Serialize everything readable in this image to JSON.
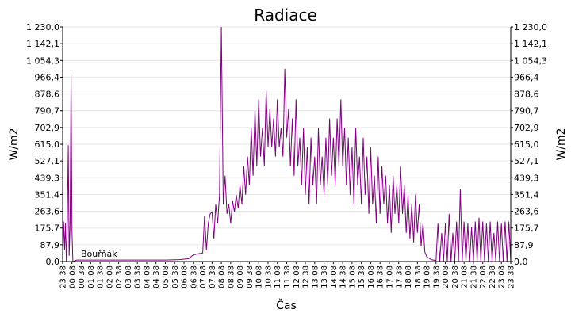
{
  "chart_data": {
    "type": "line",
    "title": "Radiace",
    "xlabel": "Čas",
    "ylabel": "W/m2",
    "ylabel_right": "W/m2",
    "ylim": [
      0,
      1230
    ],
    "yticks": [
      0,
      87.9,
      175.7,
      263.6,
      351.4,
      439.3,
      527.1,
      615.0,
      702.9,
      790.7,
      878.6,
      966.4,
      1054.3,
      1142.1,
      1230.0
    ],
    "ytick_labels": [
      "0,0",
      "87,9",
      "175,7",
      "263,6",
      "351,4",
      "439,3",
      "527,1",
      "615,0",
      "702,9",
      "790,7",
      "878,6",
      "966,4",
      "1 054,3",
      "1 142,1",
      "1 230,0"
    ],
    "xtick_labels": [
      "23:38",
      "00:08",
      "00:38",
      "01:08",
      "01:38",
      "02:08",
      "02:38",
      "03:08",
      "03:38",
      "04:08",
      "04:38",
      "05:08",
      "05:38",
      "06:08",
      "06:38",
      "07:08",
      "07:38",
      "08:08",
      "08:38",
      "09:08",
      "09:38",
      "10:08",
      "10:38",
      "11:08",
      "11:38",
      "12:08",
      "12:38",
      "13:08",
      "13:38",
      "14:08",
      "14:38",
      "15:08",
      "15:38",
      "16:08",
      "16:38",
      "17:08",
      "17:38",
      "18:08",
      "18:38",
      "19:08",
      "19:38",
      "20:08",
      "20:38",
      "21:08",
      "21:38",
      "22:08",
      "22:38",
      "23:08",
      "23:38"
    ],
    "grid": true,
    "series": [
      {
        "name": "Bouřňák",
        "color": "#800080",
        "points": [
          [
            0,
            0
          ],
          [
            0.1,
            210
          ],
          [
            0.2,
            60
          ],
          [
            0.3,
            200
          ],
          [
            0.4,
            0
          ],
          [
            0.5,
            210
          ],
          [
            0.6,
            610
          ],
          [
            0.7,
            30
          ],
          [
            0.8,
            200
          ],
          [
            0.9,
            980
          ],
          [
            1.0,
            150
          ],
          [
            1.1,
            0
          ],
          [
            1.5,
            8
          ],
          [
            3,
            8
          ],
          [
            5,
            8
          ],
          [
            7,
            8
          ],
          [
            9,
            8
          ],
          [
            11,
            8
          ],
          [
            12.5,
            10
          ],
          [
            13.5,
            15
          ],
          [
            14,
            35
          ],
          [
            14.5,
            40
          ],
          [
            15,
            45
          ],
          [
            15.2,
            240
          ],
          [
            15.4,
            60
          ],
          [
            15.6,
            200
          ],
          [
            15.8,
            250
          ],
          [
            16,
            260
          ],
          [
            16.2,
            120
          ],
          [
            16.4,
            300
          ],
          [
            16.6,
            200
          ],
          [
            16.8,
            350
          ],
          [
            17.0,
            1230
          ],
          [
            17.1,
            780
          ],
          [
            17.2,
            300
          ],
          [
            17.4,
            450
          ],
          [
            17.6,
            250
          ],
          [
            17.8,
            300
          ],
          [
            18.0,
            200
          ],
          [
            18.2,
            320
          ],
          [
            18.4,
            260
          ],
          [
            18.6,
            350
          ],
          [
            18.8,
            280
          ],
          [
            19.0,
            400
          ],
          [
            19.2,
            300
          ],
          [
            19.4,
            500
          ],
          [
            19.6,
            350
          ],
          [
            19.8,
            550
          ],
          [
            20.0,
            400
          ],
          [
            20.2,
            700
          ],
          [
            20.4,
            450
          ],
          [
            20.6,
            800
          ],
          [
            20.8,
            500
          ],
          [
            21.0,
            850
          ],
          [
            21.2,
            550
          ],
          [
            21.4,
            700
          ],
          [
            21.6,
            500
          ],
          [
            21.8,
            900
          ],
          [
            22.0,
            600
          ],
          [
            22.2,
            800
          ],
          [
            22.4,
            600
          ],
          [
            22.6,
            750
          ],
          [
            22.8,
            550
          ],
          [
            23.0,
            850
          ],
          [
            23.2,
            600
          ],
          [
            23.4,
            700
          ],
          [
            23.6,
            550
          ],
          [
            23.8,
            1010
          ],
          [
            24.0,
            650
          ],
          [
            24.2,
            800
          ],
          [
            24.4,
            500
          ],
          [
            24.6,
            750
          ],
          [
            24.8,
            450
          ],
          [
            25.0,
            850
          ],
          [
            25.2,
            500
          ],
          [
            25.4,
            650
          ],
          [
            25.6,
            400
          ],
          [
            25.8,
            700
          ],
          [
            26.0,
            350
          ],
          [
            26.2,
            600
          ],
          [
            26.4,
            300
          ],
          [
            26.6,
            650
          ],
          [
            26.8,
            400
          ],
          [
            27.0,
            550
          ],
          [
            27.2,
            300
          ],
          [
            27.4,
            700
          ],
          [
            27.6,
            400
          ],
          [
            27.8,
            550
          ],
          [
            28.0,
            350
          ],
          [
            28.2,
            650
          ],
          [
            28.4,
            400
          ],
          [
            28.6,
            750
          ],
          [
            28.8,
            450
          ],
          [
            29.0,
            650
          ],
          [
            29.2,
            400
          ],
          [
            29.4,
            750
          ],
          [
            29.6,
            500
          ],
          [
            29.8,
            850
          ],
          [
            30.0,
            500
          ],
          [
            30.2,
            700
          ],
          [
            30.4,
            400
          ],
          [
            30.6,
            650
          ],
          [
            30.8,
            350
          ],
          [
            31.0,
            600
          ],
          [
            31.2,
            300
          ],
          [
            31.4,
            700
          ],
          [
            31.6,
            400
          ],
          [
            31.8,
            550
          ],
          [
            32.0,
            300
          ],
          [
            32.2,
            650
          ],
          [
            32.4,
            350
          ],
          [
            32.6,
            550
          ],
          [
            32.8,
            250
          ],
          [
            33.0,
            600
          ],
          [
            33.2,
            300
          ],
          [
            33.4,
            450
          ],
          [
            33.6,
            200
          ],
          [
            33.8,
            550
          ],
          [
            34.0,
            250
          ],
          [
            34.2,
            500
          ],
          [
            34.4,
            300
          ],
          [
            34.6,
            450
          ],
          [
            34.8,
            200
          ],
          [
            35.0,
            400
          ],
          [
            35.2,
            150
          ],
          [
            35.4,
            450
          ],
          [
            35.6,
            250
          ],
          [
            35.8,
            400
          ],
          [
            36.0,
            200
          ],
          [
            36.2,
            500
          ],
          [
            36.4,
            250
          ],
          [
            36.6,
            400
          ],
          [
            36.8,
            150
          ],
          [
            37.0,
            350
          ],
          [
            37.2,
            120
          ],
          [
            37.4,
            300
          ],
          [
            37.6,
            100
          ],
          [
            37.8,
            350
          ],
          [
            38.0,
            150
          ],
          [
            38.2,
            300
          ],
          [
            38.4,
            80
          ],
          [
            38.6,
            200
          ],
          [
            38.8,
            50
          ],
          [
            39.0,
            25
          ],
          [
            39.5,
            10
          ],
          [
            40,
            5
          ],
          [
            40.2,
            200
          ],
          [
            40.4,
            0
          ],
          [
            40.6,
            150
          ],
          [
            40.8,
            0
          ],
          [
            41.0,
            200
          ],
          [
            41.2,
            0
          ],
          [
            41.4,
            250
          ],
          [
            41.6,
            0
          ],
          [
            41.8,
            150
          ],
          [
            42.0,
            0
          ],
          [
            42.2,
            210
          ],
          [
            42.4,
            0
          ],
          [
            42.6,
            380
          ],
          [
            42.8,
            0
          ],
          [
            43.0,
            210
          ],
          [
            43.2,
            0
          ],
          [
            43.4,
            200
          ],
          [
            43.6,
            0
          ],
          [
            43.8,
            180
          ],
          [
            44.0,
            0
          ],
          [
            44.2,
            210
          ],
          [
            44.4,
            0
          ],
          [
            44.6,
            230
          ],
          [
            44.8,
            0
          ],
          [
            45.0,
            210
          ],
          [
            45.2,
            0
          ],
          [
            45.4,
            200
          ],
          [
            45.6,
            0
          ],
          [
            45.8,
            210
          ],
          [
            46.0,
            0
          ],
          [
            46.2,
            150
          ],
          [
            46.4,
            0
          ],
          [
            46.6,
            210
          ],
          [
            46.8,
            0
          ],
          [
            47.0,
            200
          ],
          [
            47.2,
            0
          ],
          [
            47.4,
            210
          ],
          [
            47.6,
            0
          ],
          [
            47.8,
            210
          ],
          [
            48.0,
            0
          ]
        ]
      }
    ]
  }
}
